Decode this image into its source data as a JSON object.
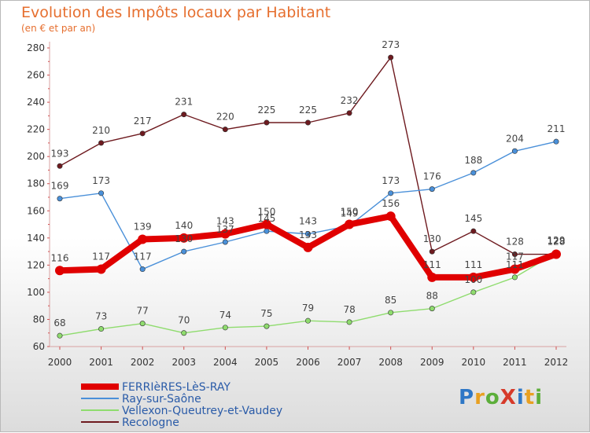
{
  "header": {
    "title": "Evolution des Impôts locaux par Habitant",
    "subtitle": "(en € et par an)"
  },
  "logo": {
    "text": "ProXiti",
    "colors": [
      "#2e77c6",
      "#e8a021",
      "#5cae3a",
      "#d63a2a",
      "#2e77c6",
      "#e8a021",
      "#5cae3a"
    ]
  },
  "chart_data": {
    "type": "line",
    "x": [
      "2000",
      "2001",
      "2002",
      "2003",
      "2004",
      "2005",
      "2006",
      "2007",
      "2008",
      "2009",
      "2010",
      "2011",
      "2012"
    ],
    "ylim": [
      60,
      280
    ],
    "yticks": [
      "60",
      "80",
      "100",
      "120",
      "140",
      "160",
      "180",
      "200",
      "220",
      "240",
      "260",
      "280"
    ],
    "grid": false,
    "legend": "bottom-left",
    "series": [
      {
        "name": "Recologne",
        "color": "#6e1a1f",
        "values": [
          193,
          210,
          217,
          231,
          220,
          225,
          225,
          232,
          273,
          130,
          145,
          128,
          128
        ],
        "labels": [
          "193",
          "210",
          "217",
          "231",
          "220",
          "225",
          "225",
          "232",
          "273",
          "130",
          "145",
          "128",
          "128"
        ]
      },
      {
        "name": "Ray-sur-Saône",
        "color": "#4a90d9",
        "values": [
          169,
          173,
          117,
          130,
          137,
          145,
          143,
          149,
          173,
          176,
          188,
          204,
          211
        ],
        "labels": [
          "169",
          "173",
          "117",
          "130",
          "137",
          "145",
          "143",
          "149",
          "173",
          "176",
          "188",
          "204",
          "211"
        ]
      },
      {
        "name": "Vellexon-Queutrey-et-Vaudey",
        "color": "#8fdc6e",
        "values": [
          68,
          73,
          77,
          70,
          74,
          75,
          79,
          78,
          85,
          88,
          100,
          111,
          129
        ],
        "labels": [
          "68",
          "73",
          "77",
          "70",
          "74",
          "75",
          "79",
          "78",
          "85",
          "88",
          "100",
          "111",
          "129"
        ]
      },
      {
        "name": "FERRIèRES-LèS-RAY",
        "color": "#e00000",
        "values": [
          116,
          117,
          139,
          140,
          143,
          150,
          133,
          150,
          156,
          111,
          111,
          117,
          128
        ],
        "labels": [
          "116",
          "117",
          "139",
          "140",
          "143",
          "150",
          "133",
          "150",
          "156",
          "111",
          "111",
          "117",
          "128"
        ]
      }
    ]
  },
  "legend": {
    "items": [
      {
        "name": "FERRIèRES-LèS-RAY",
        "color": "#e00000",
        "width": 8
      },
      {
        "name": "Ray-sur-Saône",
        "color": "#4a90d9",
        "width": 2
      },
      {
        "name": "Vellexon-Queutrey-et-Vaudey",
        "color": "#8fdc6e",
        "width": 2
      },
      {
        "name": "Recologne",
        "color": "#6e1a1f",
        "width": 2
      }
    ]
  }
}
